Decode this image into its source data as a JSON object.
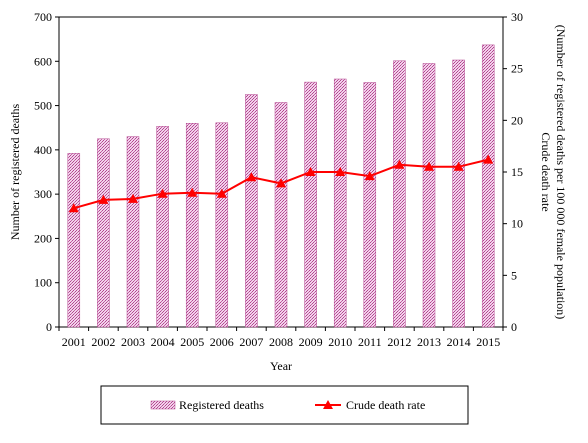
{
  "chart_data": {
    "type": "bar",
    "categories": [
      "2001",
      "2002",
      "2003",
      "2004",
      "2005",
      "2006",
      "2007",
      "2008",
      "2009",
      "2010",
      "2011",
      "2012",
      "2013",
      "2014",
      "2015"
    ],
    "series": [
      {
        "name": "Registered deaths",
        "type": "bar",
        "axis": "left",
        "values": [
          392,
          425,
          430,
          453,
          460,
          461,
          525,
          507,
          553,
          560,
          552,
          601,
          595,
          603,
          637
        ]
      },
      {
        "name": "Crude death rate",
        "type": "line",
        "axis": "right",
        "values": [
          11.5,
          12.3,
          12.4,
          12.9,
          13.0,
          12.9,
          14.5,
          13.9,
          15.0,
          15.0,
          14.6,
          15.7,
          15.5,
          15.5,
          16.2
        ]
      }
    ],
    "xlabel": "Year",
    "ylabel_left": "Number of registered deaths",
    "ylabel_right_line1": "Crude death rate",
    "ylabel_right_line2": "(Number of registered deaths per 100 000 female population)",
    "ylim_left": [
      0,
      700
    ],
    "ylim_right": [
      0,
      30
    ],
    "yticks_left": [
      "0",
      "100",
      "200",
      "300",
      "400",
      "500",
      "600",
      "700"
    ],
    "yticks_right": [
      "0",
      "5",
      "10",
      "15",
      "20",
      "25",
      "30"
    ],
    "legend": {
      "placement": "bottom",
      "entries": [
        "Registered deaths",
        "Crude death rate"
      ]
    },
    "grid": false,
    "colors": {
      "bar_fill": "#f2d2ec",
      "bar_hatch": "#b3468f",
      "line": "#ff0000",
      "axis": "#000000"
    }
  }
}
